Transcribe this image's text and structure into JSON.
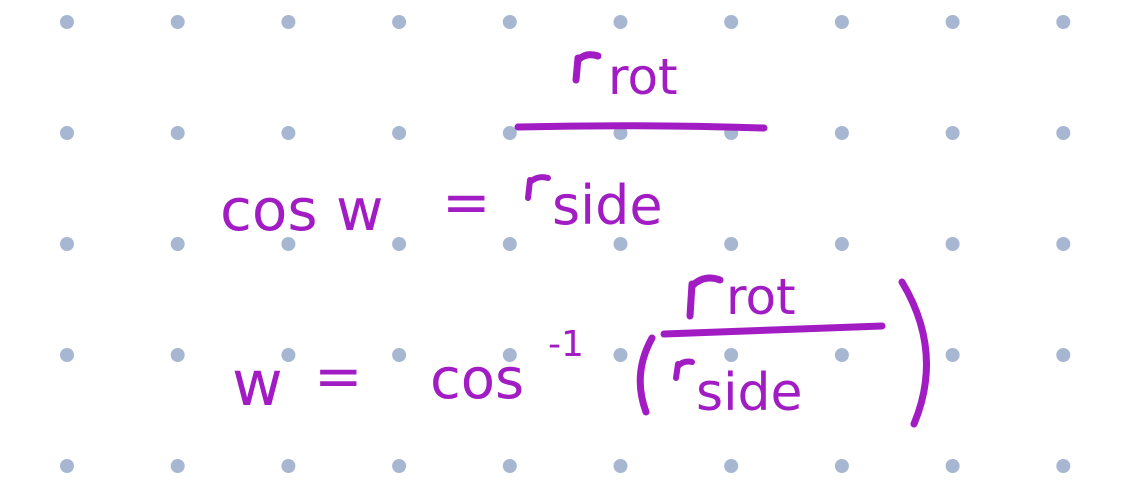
{
  "colors": {
    "ink": "#a21cc4",
    "dot": "#a7b7d2",
    "background": "#ffffff"
  },
  "equation_1": {
    "lhs": "cos w",
    "equals": "=",
    "numerator": "rot",
    "denominator": "side"
  },
  "equation_2": {
    "lhs": "w",
    "equals": "=",
    "function": "cos",
    "exponent": "-1",
    "open_paren": "(",
    "numerator": "rot",
    "denominator": "side",
    "close_paren": ")"
  }
}
